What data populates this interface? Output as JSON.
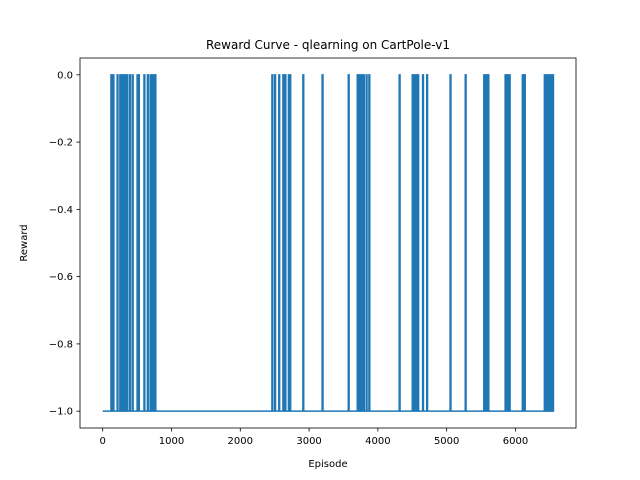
{
  "chart_data": {
    "type": "line",
    "title": "Reward Curve - qlearning on CartPole-v1",
    "xlabel": "Episode",
    "ylabel": "Reward",
    "xlim": [
      -330,
      6880
    ],
    "ylim": [
      -1.05,
      0.05
    ],
    "x_ticks": [
      0,
      1000,
      2000,
      3000,
      4000,
      5000,
      6000
    ],
    "x_tick_labels": [
      "0",
      "1000",
      "2000",
      "3000",
      "4000",
      "5000",
      "6000"
    ],
    "y_ticks": [
      -1.0,
      -0.8,
      -0.6,
      -0.4,
      -0.2,
      0.0
    ],
    "y_tick_labels": [
      "−1.0",
      "−0.8",
      "−0.6",
      "−0.4",
      "−0.2",
      "0.0"
    ],
    "grid": false,
    "color": "#1f77b4",
    "series": [
      {
        "baseline": -1.0,
        "x_range": [
          0,
          6550
        ],
        "spike_value": 0.0,
        "spike_episodes": [
          120,
          150,
          210,
          250,
          265,
          290,
          310,
          330,
          350,
          390,
          430,
          500,
          520,
          600,
          650,
          690,
          720,
          740,
          760,
          2460,
          2500,
          2560,
          2620,
          2650,
          2700,
          2720,
          2910,
          3190,
          3570,
          3700,
          3720,
          3750,
          3770,
          3790,
          3830,
          3870,
          4310,
          4500,
          4530,
          4550,
          4580,
          4650,
          4710,
          5050,
          5270,
          5540,
          5570,
          5600,
          5850,
          5880,
          5910,
          6100,
          6130,
          6420,
          6450,
          6480,
          6510,
          6540
        ]
      }
    ]
  }
}
